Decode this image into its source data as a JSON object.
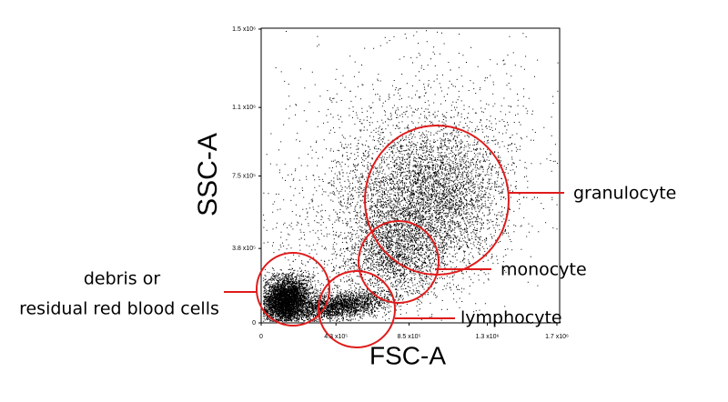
{
  "chart_data": {
    "type": "scatter",
    "x_label": "FSC-A",
    "y_label": "SSC-A",
    "xlim": [
      0,
      1700000
    ],
    "ylim": [
      0,
      1500000
    ],
    "xticks": [
      0,
      {
        "value": 430000,
        "label": "4.3 x10⁵"
      },
      {
        "value": 850000,
        "label": "8.5 x10⁵"
      },
      {
        "value": 1300000,
        "label": "1.3 x10⁶"
      },
      {
        "value": 1700000,
        "label": "1.7 x10⁶"
      }
    ],
    "yticks": [
      0,
      {
        "value": 380000,
        "label": "3.8 x10⁵"
      },
      {
        "value": 750000,
        "label": "7.5 x10⁵"
      },
      {
        "value": 1100000,
        "label": "1.1 x10⁶"
      },
      {
        "value": 1500000,
        "label": "1.5 x10⁶"
      }
    ],
    "annotations": [
      "granulocyte",
      "monocyte",
      "lymphocyte",
      "debris or",
      "residual red blood cells"
    ]
  }
}
